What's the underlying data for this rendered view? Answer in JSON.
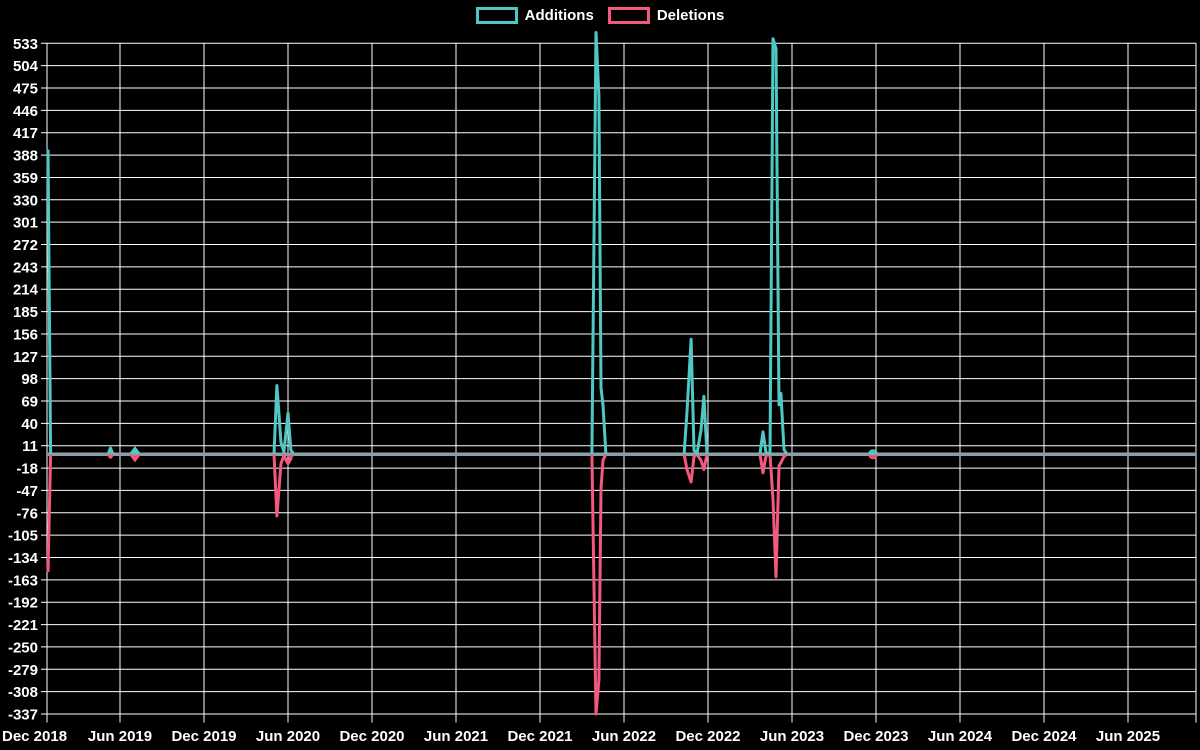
{
  "legend": {
    "items": [
      {
        "label": "Additions",
        "color": "#4FC8C4"
      },
      {
        "label": "Deletions",
        "color": "#F2597D"
      }
    ]
  },
  "chart_data": {
    "type": "line",
    "title": "",
    "xlabel": "",
    "ylabel": "",
    "background_color": "#000000",
    "grid": true,
    "grid_color": "#FFFFFF",
    "text_color": "#FFFFFF",
    "baseline_color": "#8C9EAC",
    "legend_position": "top-center",
    "x_axis": {
      "tick_labels": [
        "Dec 2018",
        "Jun 2019",
        "Dec 2019",
        "Jun 2020",
        "Dec 2020",
        "Jun 2021",
        "Dec 2021",
        "Jun 2022",
        "Dec 2022",
        "Jun 2023",
        "Dec 2023",
        "Jun 2024",
        "Dec 2024",
        "Jun 2025"
      ],
      "tick_month_offsets": [
        0,
        6,
        12,
        18,
        24,
        30,
        36,
        42,
        48,
        54,
        60,
        66,
        72,
        78
      ],
      "unit": "months since Dec 2018"
    },
    "y_axis": {
      "tick_values": [
        533,
        504,
        475,
        446,
        417,
        388,
        359,
        330,
        301,
        272,
        243,
        214,
        185,
        156,
        127,
        98,
        69,
        40,
        11,
        -18,
        -47,
        -76,
        -105,
        -134,
        -163,
        -192,
        -221,
        -250,
        -279,
        -308,
        -337
      ],
      "min": -337,
      "max": 533,
      "step": 29
    },
    "ylim": [
      -337,
      547
    ],
    "series": [
      {
        "name": "Additions",
        "color": "#4FC8C4",
        "baseline_value": 0,
        "bursts": [
          [
            [
              0.08,
              395
            ],
            [
              0.3,
              0
            ]
          ],
          [
            [
              5.01,
              0
            ],
            [
              5.22,
              8
            ],
            [
              5.42,
              0
            ]
          ],
          [
            [
              6.86,
              0
            ],
            [
              7.07,
              6
            ],
            [
              7.29,
              0
            ]
          ],
          [
            [
              17.0,
              0
            ],
            [
              17.21,
              89
            ],
            [
              17.5,
              15
            ],
            [
              17.71,
              3
            ],
            [
              18.0,
              53
            ],
            [
              18.21,
              5
            ],
            [
              18.43,
              0
            ]
          ],
          [
            [
              39.71,
              0
            ],
            [
              40.0,
              547
            ],
            [
              40.21,
              465
            ],
            [
              40.36,
              86
            ],
            [
              40.5,
              64
            ],
            [
              40.71,
              0
            ]
          ],
          [
            [
              46.29,
              0
            ],
            [
              46.5,
              55
            ],
            [
              46.79,
              149
            ],
            [
              47.0,
              5
            ],
            [
              47.21,
              0
            ],
            [
              47.5,
              31
            ],
            [
              47.71,
              75
            ],
            [
              47.93,
              0
            ]
          ],
          [
            [
              51.71,
              0
            ],
            [
              51.93,
              29
            ],
            [
              52.14,
              2
            ],
            [
              52.43,
              0
            ],
            [
              52.64,
              539
            ],
            [
              52.86,
              526
            ],
            [
              53.07,
              64
            ],
            [
              53.21,
              79
            ],
            [
              53.43,
              6
            ],
            [
              53.64,
              0
            ]
          ],
          [
            [
              59.57,
              0
            ],
            [
              59.79,
              2
            ],
            [
              60.0,
              0
            ]
          ]
        ]
      },
      {
        "name": "Deletions",
        "color": "#F2597D",
        "baseline_value": 0,
        "bursts": [
          [
            [
              0.08,
              -153
            ],
            [
              0.3,
              0
            ]
          ],
          [
            [
              5.01,
              0
            ],
            [
              5.22,
              -4
            ],
            [
              5.42,
              0
            ]
          ],
          [
            [
              6.86,
              0
            ],
            [
              7.07,
              -7
            ],
            [
              7.29,
              0
            ]
          ],
          [
            [
              17.0,
              0
            ],
            [
              17.21,
              -80
            ],
            [
              17.5,
              -12
            ],
            [
              17.71,
              -2
            ],
            [
              18.0,
              -11
            ],
            [
              18.21,
              -3
            ],
            [
              18.43,
              0
            ]
          ],
          [
            [
              39.71,
              0
            ],
            [
              40.0,
              -337
            ],
            [
              40.21,
              -293
            ],
            [
              40.36,
              -45
            ],
            [
              40.5,
              -8
            ],
            [
              40.71,
              0
            ]
          ],
          [
            [
              46.29,
              0
            ],
            [
              46.5,
              -20
            ],
            [
              46.79,
              -36
            ],
            [
              47.0,
              -3
            ],
            [
              47.21,
              0
            ],
            [
              47.5,
              -8
            ],
            [
              47.71,
              -20
            ],
            [
              47.93,
              0
            ]
          ],
          [
            [
              51.71,
              0
            ],
            [
              51.93,
              -24
            ],
            [
              52.14,
              -2
            ],
            [
              52.43,
              0
            ],
            [
              52.64,
              -59
            ],
            [
              52.86,
              -159
            ],
            [
              53.07,
              -15
            ],
            [
              53.21,
              -11
            ],
            [
              53.43,
              -3
            ],
            [
              53.64,
              0
            ]
          ],
          [
            [
              59.57,
              0
            ],
            [
              59.79,
              -2
            ],
            [
              60.0,
              0
            ]
          ]
        ]
      }
    ],
    "markers": [
      {
        "shape": "diamond",
        "month": 7.07,
        "value": 0
      },
      {
        "shape": "arrow-down",
        "month": 18.0,
        "value": -11
      },
      {
        "shape": "circle",
        "month": 59.79,
        "value": 0
      }
    ]
  }
}
